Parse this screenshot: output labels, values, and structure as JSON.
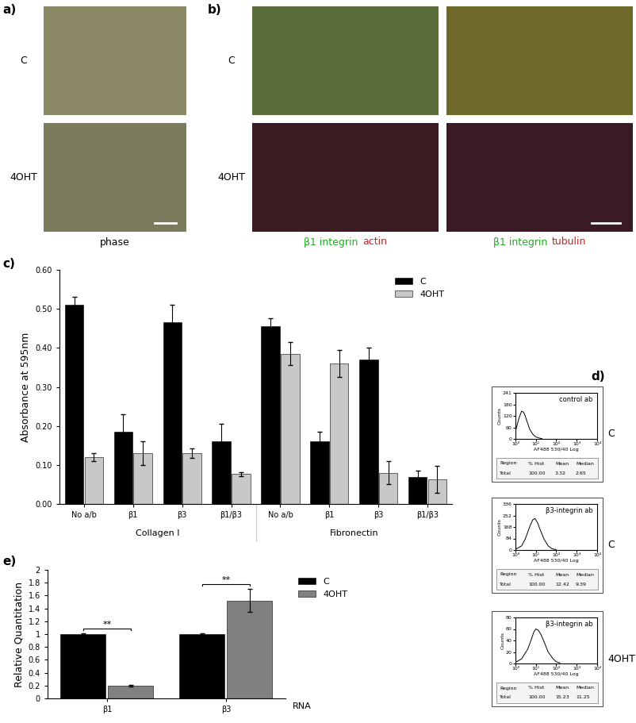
{
  "images": [
    {
      "panel": "a)",
      "row_labels": [
        "C",
        "4OHT"
      ],
      "columns": [
        {
          "caption": [
            {
              "text": "phase",
              "color": "#000000"
            }
          ]
        }
      ]
    },
    {
      "panel": "b)",
      "row_labels": [
        "C",
        "4OHT"
      ],
      "columns": [
        {
          "caption": [
            {
              "text": "β1 integrin",
              "color": "#22aa22"
            },
            {
              "text": "actin",
              "color": "#cc2222"
            }
          ]
        },
        {
          "caption": [
            {
              "text": "β1 integrin",
              "color": "#22aa22"
            },
            {
              "text": "tubulin",
              "color": "#cc2222"
            }
          ]
        }
      ]
    }
  ],
  "chart_data": [
    {
      "panel": "c)",
      "type": "bar",
      "y_label": "Absorbance at 595nm",
      "categories": [
        "No a/b",
        "β1",
        "β3",
        "β1/β3",
        "No a/b",
        "β1",
        "β3",
        "β1/β3"
      ],
      "groups": [
        {
          "label": "Collagen I",
          "count": 4
        },
        {
          "label": "Fibronectin",
          "count": 4
        }
      ],
      "series": [
        {
          "name": "C",
          "color": "#000000",
          "values": [
            0.51,
            0.185,
            0.465,
            0.16,
            0.455,
            0.16,
            0.37,
            0.07
          ],
          "errors": [
            0.02,
            0.045,
            0.045,
            0.045,
            0.02,
            0.025,
            0.03,
            0.015
          ]
        },
        {
          "name": "4OHT",
          "color": "#c8c8c8",
          "values": [
            0.12,
            0.13,
            0.13,
            0.077,
            0.385,
            0.36,
            0.08,
            0.063
          ],
          "errors": [
            0.01,
            0.03,
            0.012,
            0.005,
            0.03,
            0.035,
            0.03,
            0.035
          ]
        }
      ],
      "ylim": [
        0,
        0.6
      ],
      "yticks": [
        {
          "value": 0,
          "label": "0.00"
        },
        {
          "value": 0.1,
          "label": "0.10"
        },
        {
          "value": 0.2,
          "label": "0.20"
        },
        {
          "value": 0.3,
          "label": "0.30"
        },
        {
          "value": 0.4,
          "label": "0.40"
        },
        {
          "value": 0.5,
          "label": "0.50"
        },
        {
          "value": 0.6,
          "label": "0.60"
        }
      ],
      "legend": "upper right"
    },
    {
      "panel": "d)",
      "type": "line",
      "inset_label": "control ab",
      "side_label": "C",
      "x": [
        1,
        1.5,
        2,
        2.5,
        3,
        4,
        5,
        7,
        10,
        15,
        20
      ],
      "values": [
        40,
        110,
        145,
        140,
        120,
        80,
        50,
        25,
        10,
        4,
        1
      ],
      "color": "#000000",
      "log": "x",
      "xlim": [
        1,
        10000
      ],
      "xticks": [
        {
          "value": 1,
          "label": "10⁰"
        },
        {
          "value": 10,
          "label": "10¹"
        },
        {
          "value": 100,
          "label": "10²"
        },
        {
          "value": 1000,
          "label": "10³"
        },
        {
          "value": 10000,
          "label": "10⁴"
        }
      ],
      "ylim": [
        0,
        241
      ],
      "yticks": [
        0,
        60,
        120,
        180,
        241
      ],
      "x_label": "AF488 530/40 Log",
      "y_label": "Counts",
      "stats_table": {
        "header": [
          "Region",
          "% Hist",
          "Mean",
          "Median"
        ],
        "rows": [
          [
            "Total",
            "100.00",
            "3.32",
            "2.65"
          ]
        ]
      }
    },
    {
      "type": "line",
      "inset_label": "β3-integrin ab",
      "side_label": "C",
      "x": [
        1,
        2,
        3,
        5,
        7,
        9,
        12,
        16,
        25,
        40,
        60,
        100
      ],
      "values": [
        5,
        30,
        80,
        170,
        220,
        230,
        200,
        150,
        80,
        30,
        10,
        2
      ],
      "color": "#000000",
      "log": "x",
      "xlim": [
        1,
        10000
      ],
      "xticks": [
        {
          "value": 1,
          "label": "10⁰"
        },
        {
          "value": 10,
          "label": "10¹"
        },
        {
          "value": 100,
          "label": "10²"
        },
        {
          "value": 1000,
          "label": "10³"
        },
        {
          "value": 10000,
          "label": "10⁴"
        }
      ],
      "ylim": [
        0,
        336
      ],
      "yticks": [
        0,
        84,
        168,
        252,
        336
      ],
      "x_label": "AF488 530/40 Log",
      "y_label": "Counts",
      "stats_table": {
        "header": [
          "Region",
          "% Hist",
          "Mean",
          "Median"
        ],
        "rows": [
          [
            "Total",
            "100.00",
            "12.42",
            "9.39"
          ]
        ]
      }
    },
    {
      "type": "line",
      "inset_label": "β3-integrin ab",
      "side_label": "4OHT",
      "x": [
        1,
        2,
        4,
        6,
        8,
        10,
        13,
        18,
        25,
        40,
        70,
        100,
        150
      ],
      "values": [
        2,
        8,
        25,
        42,
        55,
        60,
        58,
        50,
        38,
        20,
        8,
        3,
        1
      ],
      "color": "#000000",
      "log": "x",
      "xlim": [
        1,
        10000
      ],
      "xticks": [
        {
          "value": 1,
          "label": "10⁰"
        },
        {
          "value": 10,
          "label": "10¹"
        },
        {
          "value": 100,
          "label": "10²"
        },
        {
          "value": 1000,
          "label": "10³"
        },
        {
          "value": 10000,
          "label": "10⁴"
        }
      ],
      "ylim": [
        0,
        80
      ],
      "yticks": [
        0,
        20,
        40,
        60,
        80
      ],
      "x_label": "AF488 530/40 Log",
      "y_label": "Counts",
      "stats_table": {
        "header": [
          "Region",
          "% Hist",
          "Mean",
          "Median"
        ],
        "rows": [
          [
            "Total",
            "100.00",
            "15.23",
            "11.25"
          ]
        ]
      }
    },
    {
      "panel": "e)",
      "type": "bar",
      "y_label": "Relative Quantitation",
      "x_label": "RNA",
      "categories": [
        "β1",
        "β3"
      ],
      "series": [
        {
          "name": "C",
          "color": "#000000",
          "values": [
            1,
            1
          ],
          "errors": [
            0.01,
            0.01
          ]
        },
        {
          "name": "4OHT",
          "color": "#808080",
          "values": [
            0.2,
            1.52
          ],
          "errors": [
            0.01,
            0.18
          ]
        }
      ],
      "significance": [
        {
          "category": "β1",
          "label": "**"
        },
        {
          "category": "β3",
          "label": "**"
        }
      ],
      "ylim": [
        0,
        2
      ],
      "yticks": [
        0,
        0.2,
        0.4,
        0.6,
        0.8,
        1,
        1.2,
        1.4,
        1.6,
        1.8,
        2
      ],
      "legend": "upper left"
    }
  ]
}
